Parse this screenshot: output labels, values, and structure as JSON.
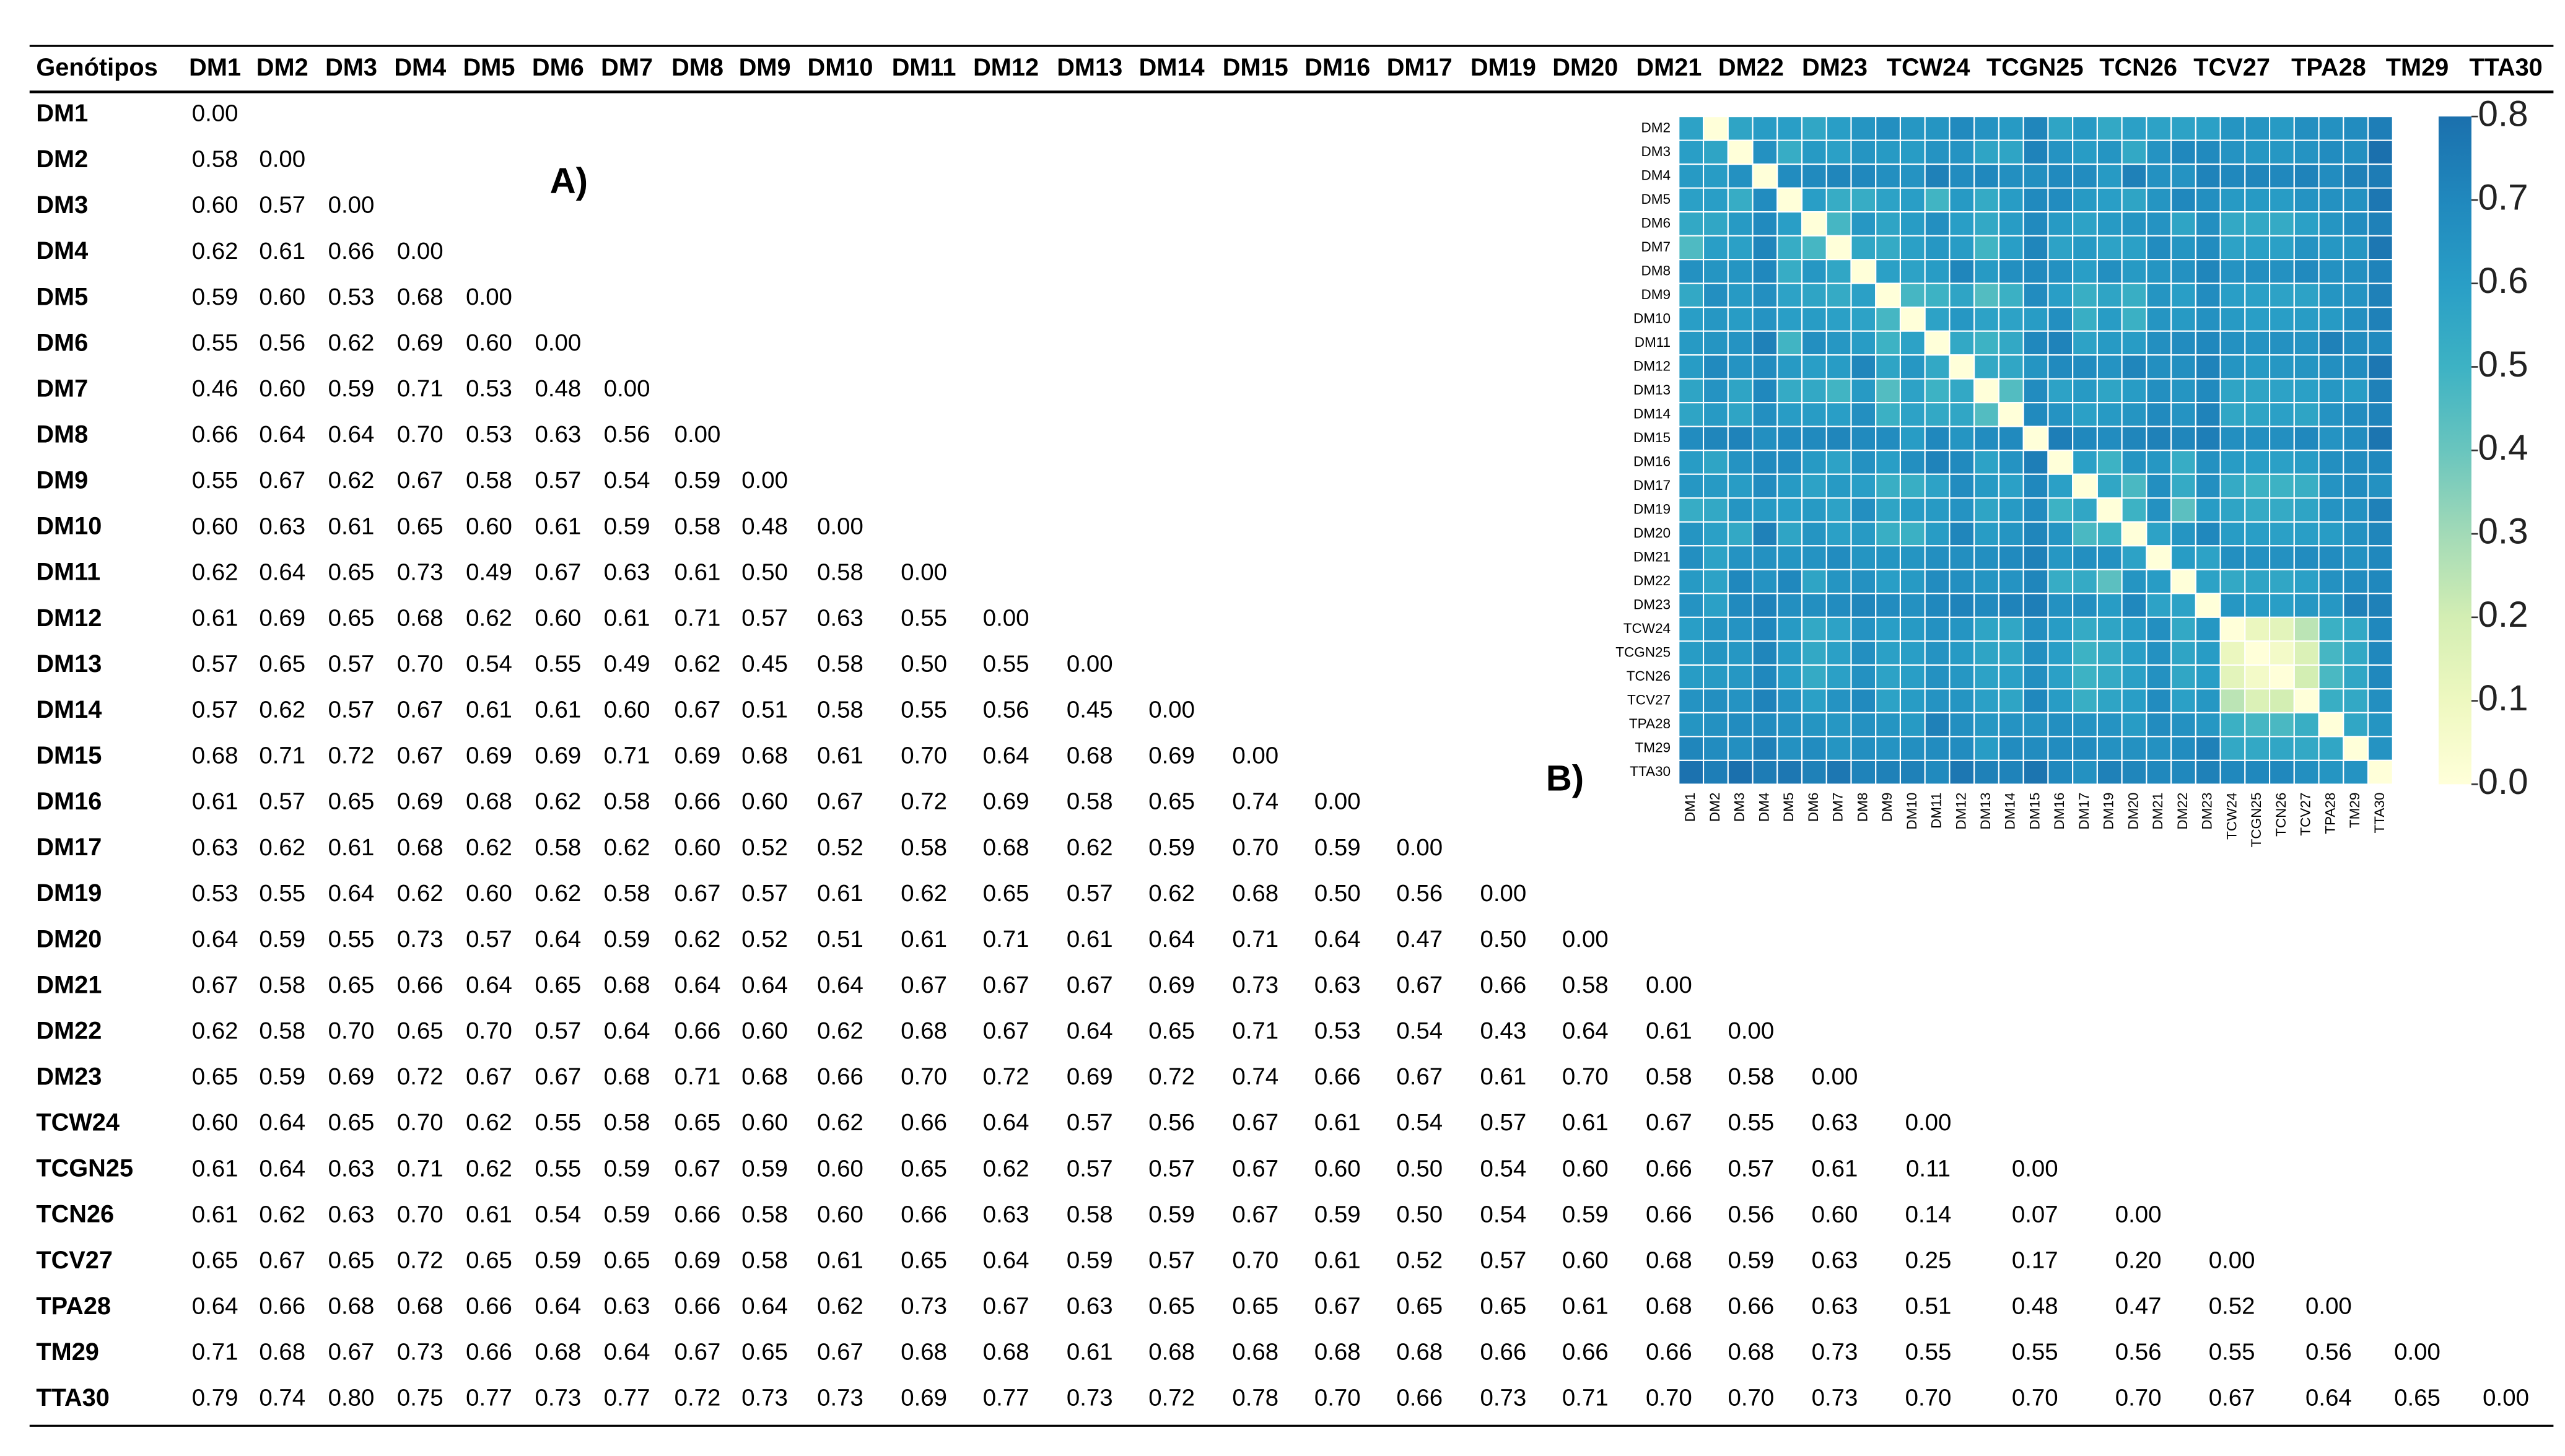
{
  "panel_labels": {
    "a": "A)",
    "b": "B)"
  },
  "table": {
    "header": [
      "Genótipos",
      "DM1",
      "DM2",
      "DM3",
      "DM4",
      "DM5",
      "DM6",
      "DM7",
      "DM8",
      "DM9",
      "DM10",
      "DM11",
      "DM12",
      "DM13",
      "DM14",
      "DM15",
      "DM16",
      "DM17",
      "DM19",
      "DM20",
      "DM21",
      "DM22",
      "DM23",
      "TCW24",
      "TCGN25",
      "TCN26",
      "TCV27",
      "TPA28",
      "TM29",
      "TTA30"
    ],
    "rows": [
      [
        "DM1",
        "0.00"
      ],
      [
        "DM2",
        "0.58",
        "0.00"
      ],
      [
        "DM3",
        "0.60",
        "0.57",
        "0.00"
      ],
      [
        "DM4",
        "0.62",
        "0.61",
        "0.66",
        "0.00"
      ],
      [
        "DM5",
        "0.59",
        "0.60",
        "0.53",
        "0.68",
        "0.00"
      ],
      [
        "DM6",
        "0.55",
        "0.56",
        "0.62",
        "0.69",
        "0.60",
        "0.00"
      ],
      [
        "DM7",
        "0.46",
        "0.60",
        "0.59",
        "0.71",
        "0.53",
        "0.48",
        "0.00"
      ],
      [
        "DM8",
        "0.66",
        "0.64",
        "0.64",
        "0.70",
        "0.53",
        "0.63",
        "0.56",
        "0.00"
      ],
      [
        "DM9",
        "0.55",
        "0.67",
        "0.62",
        "0.67",
        "0.58",
        "0.57",
        "0.54",
        "0.59",
        "0.00"
      ],
      [
        "DM10",
        "0.60",
        "0.63",
        "0.61",
        "0.65",
        "0.60",
        "0.61",
        "0.59",
        "0.58",
        "0.48",
        "0.00"
      ],
      [
        "DM11",
        "0.62",
        "0.64",
        "0.65",
        "0.73",
        "0.49",
        "0.67",
        "0.63",
        "0.61",
        "0.50",
        "0.58",
        "0.00"
      ],
      [
        "DM12",
        "0.61",
        "0.69",
        "0.65",
        "0.68",
        "0.62",
        "0.60",
        "0.61",
        "0.71",
        "0.57",
        "0.63",
        "0.55",
        "0.00"
      ],
      [
        "DM13",
        "0.57",
        "0.65",
        "0.57",
        "0.70",
        "0.54",
        "0.55",
        "0.49",
        "0.62",
        "0.45",
        "0.58",
        "0.50",
        "0.55",
        "0.00"
      ],
      [
        "DM14",
        "0.57",
        "0.62",
        "0.57",
        "0.67",
        "0.61",
        "0.61",
        "0.60",
        "0.67",
        "0.51",
        "0.58",
        "0.55",
        "0.56",
        "0.45",
        "0.00"
      ],
      [
        "DM15",
        "0.68",
        "0.71",
        "0.72",
        "0.67",
        "0.69",
        "0.69",
        "0.71",
        "0.69",
        "0.68",
        "0.61",
        "0.70",
        "0.64",
        "0.68",
        "0.69",
        "0.00"
      ],
      [
        "DM16",
        "0.61",
        "0.57",
        "0.65",
        "0.69",
        "0.68",
        "0.62",
        "0.58",
        "0.66",
        "0.60",
        "0.67",
        "0.72",
        "0.69",
        "0.58",
        "0.65",
        "0.74",
        "0.00"
      ],
      [
        "DM17",
        "0.63",
        "0.62",
        "0.61",
        "0.68",
        "0.62",
        "0.58",
        "0.62",
        "0.60",
        "0.52",
        "0.52",
        "0.58",
        "0.68",
        "0.62",
        "0.59",
        "0.70",
        "0.59",
        "0.00"
      ],
      [
        "DM19",
        "0.53",
        "0.55",
        "0.64",
        "0.62",
        "0.60",
        "0.62",
        "0.58",
        "0.67",
        "0.57",
        "0.61",
        "0.62",
        "0.65",
        "0.57",
        "0.62",
        "0.68",
        "0.50",
        "0.56",
        "0.00"
      ],
      [
        "DM20",
        "0.64",
        "0.59",
        "0.55",
        "0.73",
        "0.57",
        "0.64",
        "0.59",
        "0.62",
        "0.52",
        "0.51",
        "0.61",
        "0.71",
        "0.61",
        "0.64",
        "0.71",
        "0.64",
        "0.47",
        "0.50",
        "0.00"
      ],
      [
        "DM21",
        "0.67",
        "0.58",
        "0.65",
        "0.66",
        "0.64",
        "0.65",
        "0.68",
        "0.64",
        "0.64",
        "0.64",
        "0.67",
        "0.67",
        "0.67",
        "0.69",
        "0.73",
        "0.63",
        "0.67",
        "0.66",
        "0.58",
        "0.00"
      ],
      [
        "DM22",
        "0.62",
        "0.58",
        "0.70",
        "0.65",
        "0.70",
        "0.57",
        "0.64",
        "0.66",
        "0.60",
        "0.62",
        "0.68",
        "0.67",
        "0.64",
        "0.65",
        "0.71",
        "0.53",
        "0.54",
        "0.43",
        "0.64",
        "0.61",
        "0.00"
      ],
      [
        "DM23",
        "0.65",
        "0.59",
        "0.69",
        "0.72",
        "0.67",
        "0.67",
        "0.68",
        "0.71",
        "0.68",
        "0.66",
        "0.70",
        "0.72",
        "0.69",
        "0.72",
        "0.74",
        "0.66",
        "0.67",
        "0.61",
        "0.70",
        "0.58",
        "0.58",
        "0.00"
      ],
      [
        "TCW24",
        "0.60",
        "0.64",
        "0.65",
        "0.70",
        "0.62",
        "0.55",
        "0.58",
        "0.65",
        "0.60",
        "0.62",
        "0.66",
        "0.64",
        "0.57",
        "0.56",
        "0.67",
        "0.61",
        "0.54",
        "0.57",
        "0.61",
        "0.67",
        "0.55",
        "0.63",
        "0.00"
      ],
      [
        "TCGN25",
        "0.61",
        "0.64",
        "0.63",
        "0.71",
        "0.62",
        "0.55",
        "0.59",
        "0.67",
        "0.59",
        "0.60",
        "0.65",
        "0.62",
        "0.57",
        "0.57",
        "0.67",
        "0.60",
        "0.50",
        "0.54",
        "0.60",
        "0.66",
        "0.57",
        "0.61",
        "0.11",
        "0.00"
      ],
      [
        "TCN26",
        "0.61",
        "0.62",
        "0.63",
        "0.70",
        "0.61",
        "0.54",
        "0.59",
        "0.66",
        "0.58",
        "0.60",
        "0.66",
        "0.63",
        "0.58",
        "0.59",
        "0.67",
        "0.59",
        "0.50",
        "0.54",
        "0.59",
        "0.66",
        "0.56",
        "0.60",
        "0.14",
        "0.07",
        "0.00"
      ],
      [
        "TCV27",
        "0.65",
        "0.67",
        "0.65",
        "0.72",
        "0.65",
        "0.59",
        "0.65",
        "0.69",
        "0.58",
        "0.61",
        "0.65",
        "0.64",
        "0.59",
        "0.57",
        "0.70",
        "0.61",
        "0.52",
        "0.57",
        "0.60",
        "0.68",
        "0.59",
        "0.63",
        "0.25",
        "0.17",
        "0.20",
        "0.00"
      ],
      [
        "TPA28",
        "0.64",
        "0.66",
        "0.68",
        "0.68",
        "0.66",
        "0.64",
        "0.63",
        "0.66",
        "0.64",
        "0.62",
        "0.73",
        "0.67",
        "0.63",
        "0.65",
        "0.65",
        "0.67",
        "0.65",
        "0.65",
        "0.61",
        "0.68",
        "0.66",
        "0.63",
        "0.51",
        "0.48",
        "0.47",
        "0.52",
        "0.00"
      ],
      [
        "TM29",
        "0.71",
        "0.68",
        "0.67",
        "0.73",
        "0.66",
        "0.68",
        "0.64",
        "0.67",
        "0.65",
        "0.67",
        "0.68",
        "0.68",
        "0.61",
        "0.68",
        "0.68",
        "0.68",
        "0.68",
        "0.66",
        "0.66",
        "0.66",
        "0.68",
        "0.73",
        "0.55",
        "0.55",
        "0.56",
        "0.55",
        "0.56",
        "0.00"
      ],
      [
        "TTA30",
        "0.79",
        "0.74",
        "0.80",
        "0.75",
        "0.77",
        "0.73",
        "0.77",
        "0.72",
        "0.73",
        "0.73",
        "0.69",
        "0.77",
        "0.73",
        "0.72",
        "0.78",
        "0.70",
        "0.66",
        "0.73",
        "0.71",
        "0.70",
        "0.70",
        "0.73",
        "0.70",
        "0.70",
        "0.70",
        "0.67",
        "0.64",
        "0.65",
        "0.00"
      ]
    ]
  },
  "heatmap": {
    "colorbar": {
      "lim": [
        0,
        0.8
      ],
      "ticks": [
        {
          "value": 0,
          "label": "0.0"
        },
        {
          "value": 0.1,
          "label": "0.1"
        },
        {
          "value": 0.2,
          "label": "0.2"
        },
        {
          "value": 0.3,
          "label": "0.3"
        },
        {
          "value": 0.4,
          "label": "0.4"
        },
        {
          "value": 0.5,
          "label": "0.5"
        },
        {
          "value": 0.6,
          "label": "0.6"
        },
        {
          "value": 0.7,
          "label": "0.7"
        },
        {
          "value": 0.8,
          "label": "0.8"
        }
      ]
    }
  }
}
